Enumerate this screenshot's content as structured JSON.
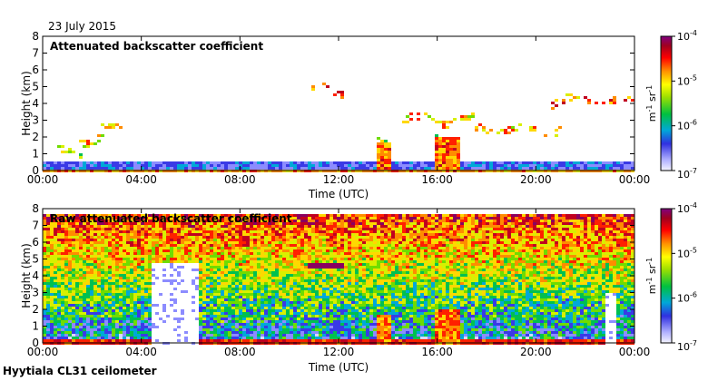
{
  "date_label": "23 July 2015",
  "footer_label": "Hyytiala CL31 ceilometer",
  "chart_data": [
    {
      "type": "heatmap",
      "title": "Attenuated backscatter coefficient",
      "xlabel": "Time (UTC)",
      "ylabel": "Height (km)",
      "x_ticks": [
        "00:00",
        "04:00",
        "08:00",
        "12:00",
        "16:00",
        "20:00",
        "00:00"
      ],
      "xlim_hours": [
        0,
        24
      ],
      "y_ticks": [
        "0",
        "1",
        "2",
        "3",
        "4",
        "5",
        "6",
        "7",
        "8"
      ],
      "ylim_km": [
        0,
        8
      ],
      "colorbar": {
        "scale": "log",
        "range": [
          1e-07,
          0.0001
        ],
        "tick_labels": [
          "10",
          "10",
          "10",
          "10"
        ],
        "tick_exponents": [
          "-7",
          "-6",
          "-5",
          "-4"
        ],
        "unit_parts": [
          "m",
          "-1",
          " sr",
          "-1"
        ]
      },
      "features": [
        {
          "desc": "aerosol boundary layer",
          "start_h": 0,
          "end_h": 24,
          "top_km": 0.7,
          "level": 0.22
        },
        {
          "desc": "cloud layer",
          "start_h": 1.2,
          "end_h": 2.5,
          "height_km": 1.9,
          "level": 0.8
        },
        {
          "desc": "cloud layer",
          "start_h": 2.3,
          "end_h": 3.2,
          "height_km": 2.6,
          "level": 0.8
        },
        {
          "desc": "cloud layer",
          "start_h": 0.4,
          "end_h": 1.5,
          "height_km": 1.2,
          "level": 0.7
        },
        {
          "desc": "mid-level cloud",
          "start_h": 10.7,
          "end_h": 12.2,
          "height_km": 4.9,
          "level": 0.95
        },
        {
          "desc": "mid-level cloud",
          "start_h": 14.5,
          "end_h": 17.5,
          "height_km": 3.1,
          "level": 0.85
        },
        {
          "desc": "mid-level cloud",
          "start_h": 17.5,
          "end_h": 21.0,
          "height_km": 2.5,
          "level": 0.85
        },
        {
          "desc": "mid-level cloud",
          "start_h": 20.5,
          "end_h": 23.9,
          "height_km": 4.2,
          "level": 0.9
        },
        {
          "desc": "precipitation shaft",
          "start_h": 13.4,
          "end_h": 14.0,
          "height_km": 1.8,
          "level": 0.75
        },
        {
          "desc": "precipitation shaft",
          "start_h": 15.9,
          "end_h": 16.8,
          "height_km": 2.1,
          "level": 0.75
        }
      ]
    },
    {
      "type": "heatmap",
      "title": "Raw attenuated backscatter coefficient",
      "xlabel": "Time (UTC)",
      "ylabel": "Height (km)",
      "x_ticks": [
        "00:00",
        "04:00",
        "08:00",
        "12:00",
        "16:00",
        "20:00",
        "00:00"
      ],
      "xlim_hours": [
        0,
        24
      ],
      "y_ticks": [
        "0",
        "1",
        "2",
        "3",
        "4",
        "5",
        "6",
        "7",
        "8"
      ],
      "ylim_km": [
        0,
        8
      ],
      "colorbar": {
        "scale": "log",
        "range": [
          1e-07,
          0.0001
        ],
        "tick_labels": [
          "10",
          "10",
          "10",
          "10"
        ],
        "tick_exponents": [
          "-7",
          "-6",
          "-5",
          "-4"
        ],
        "unit_parts": [
          "m",
          "-1",
          " sr",
          "-1"
        ]
      },
      "features": [
        {
          "desc": "noise increasing with height",
          "start_h": 0,
          "end_h": 24,
          "top_km": 7.7,
          "level": 0.6
        },
        {
          "desc": "solar noise gap",
          "start_h": 4.4,
          "end_h": 6.2,
          "height_km": 4.8,
          "level": 0.0
        },
        {
          "desc": "solar noise gap",
          "start_h": 22.8,
          "end_h": 23.2,
          "height_km": 3.0,
          "level": 0.0
        },
        {
          "desc": "cloud layer",
          "start_h": 10.7,
          "end_h": 12.2,
          "height_km": 4.8,
          "level": 0.95
        },
        {
          "desc": "precipitation shaft",
          "start_h": 13.4,
          "end_h": 14.0,
          "height_km": 1.8,
          "level": 0.75
        },
        {
          "desc": "precipitation shaft",
          "start_h": 15.9,
          "end_h": 16.8,
          "height_km": 2.1,
          "level": 0.75
        }
      ]
    }
  ]
}
